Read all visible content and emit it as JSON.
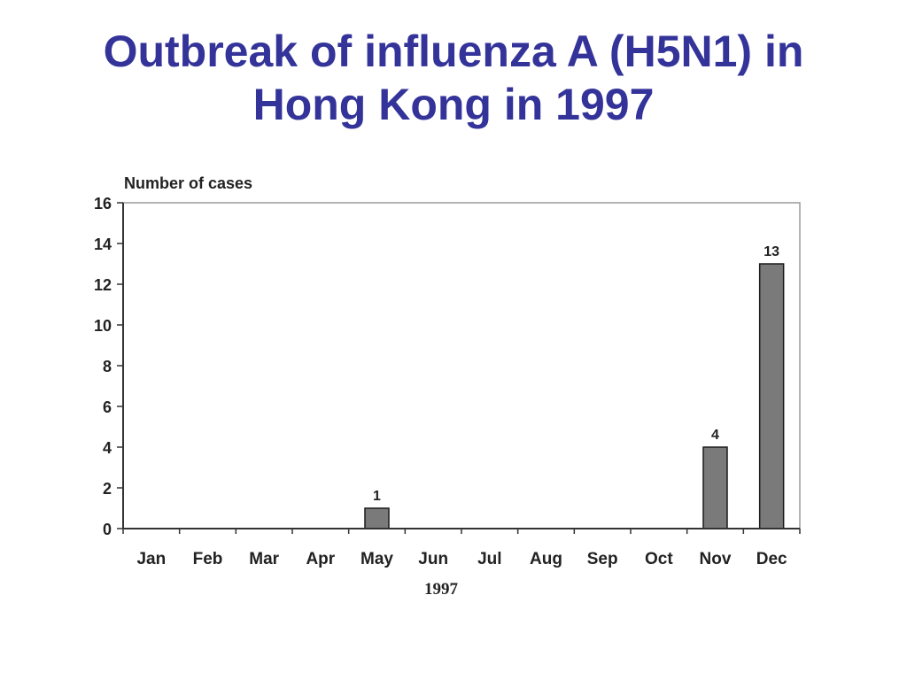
{
  "slide": {
    "title_line1": "Outbreak of influenza A (H5N1) in",
    "title_line2": "Hong Kong in 1997"
  },
  "chart_data": {
    "type": "bar",
    "ylabel": "Number of cases",
    "xlabel": "1997",
    "categories": [
      "Jan",
      "Feb",
      "Mar",
      "Apr",
      "May",
      "Jun",
      "Jul",
      "Aug",
      "Sep",
      "Oct",
      "Nov",
      "Dec"
    ],
    "values": [
      0,
      0,
      0,
      0,
      1,
      0,
      0,
      0,
      0,
      0,
      4,
      13
    ],
    "data_labels": [
      "",
      "",
      "",
      "",
      "1",
      "",
      "",
      "",
      "",
      "",
      "4",
      "13"
    ],
    "ylim": [
      0,
      16
    ],
    "yticks": [
      0,
      2,
      4,
      6,
      8,
      10,
      12,
      14,
      16
    ],
    "grid": false,
    "bar_color": "#7a7a7a"
  }
}
